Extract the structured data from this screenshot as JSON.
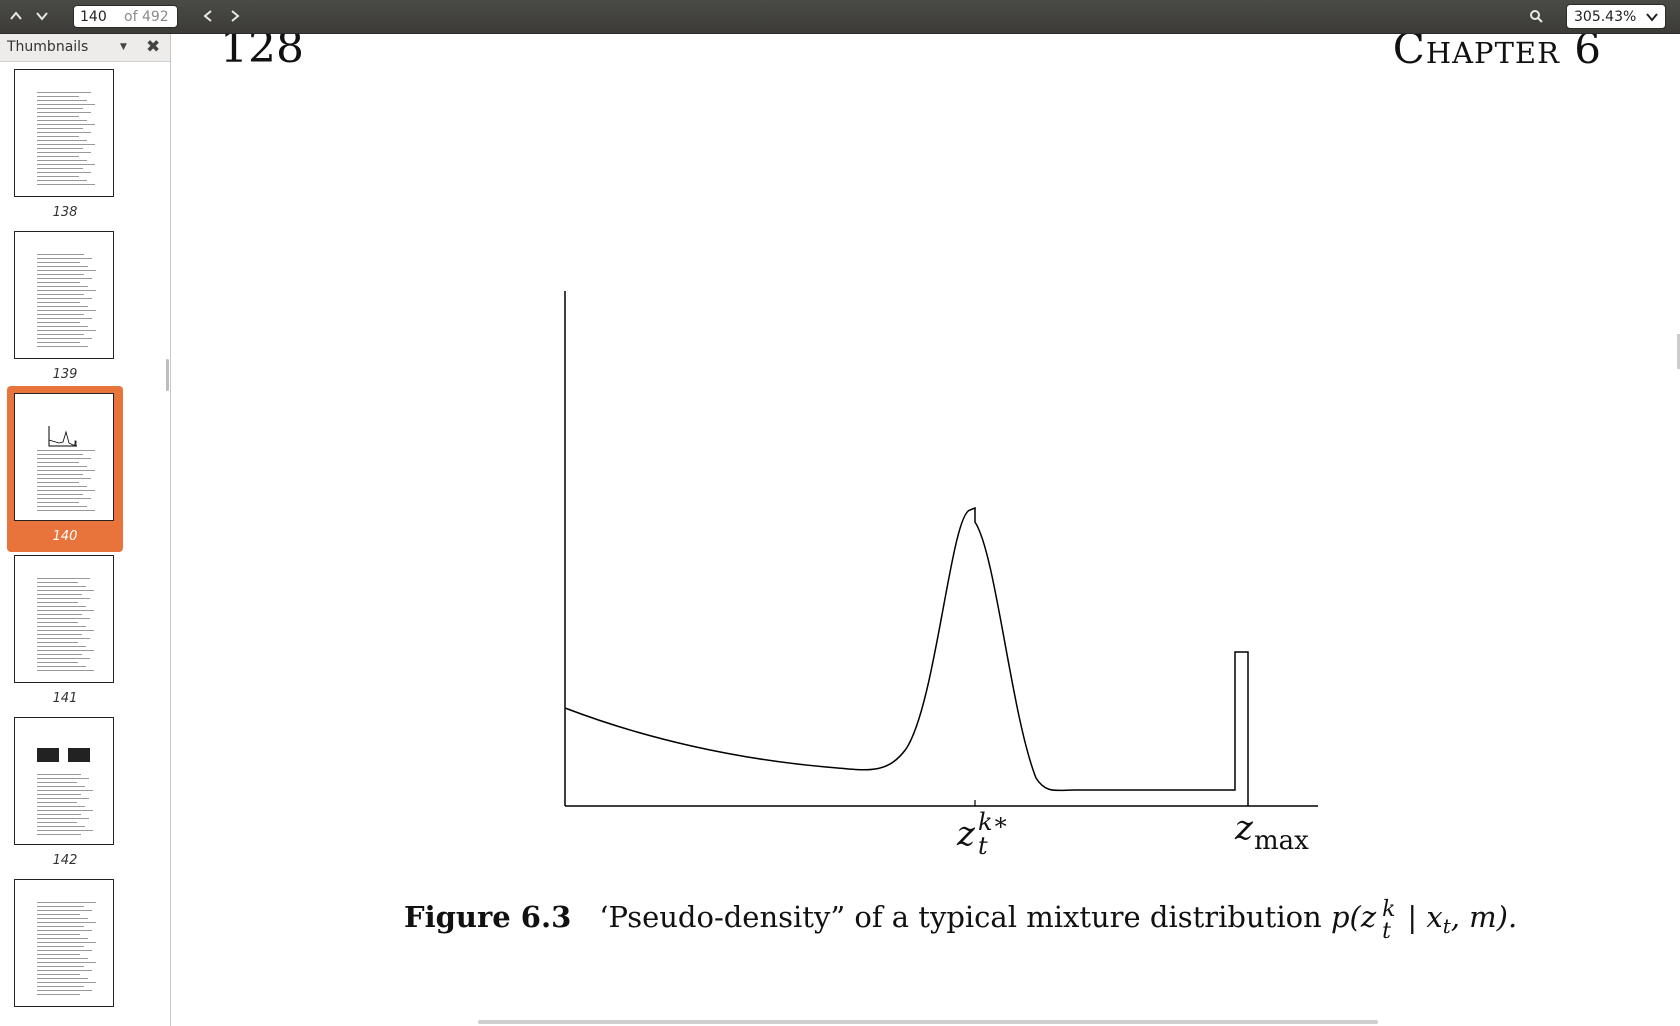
{
  "toolbar": {
    "page_current": "140",
    "page_total": "of 492",
    "zoom_value": "305.43%"
  },
  "sidebar": {
    "title": "Thumbnails",
    "thumbnails": [
      {
        "label": "138",
        "selected": false
      },
      {
        "label": "139",
        "selected": false
      },
      {
        "label": "140",
        "selected": true
      },
      {
        "label": "141",
        "selected": false
      },
      {
        "label": "142",
        "selected": false
      },
      {
        "label": "",
        "selected": false
      }
    ]
  },
  "document": {
    "page_number": "128",
    "chapter": "Chapter 6",
    "figure_label": "Figure 6.3",
    "caption_text": "‘Pseudo-density” of a typical mixture distribution ",
    "caption_math": "p(z",
    "caption_sup": "k",
    "caption_sub": "t",
    "caption_rest": " | x",
    "caption_rest_sub": "t",
    "caption_end": ", m).",
    "peak_label_base": "z",
    "peak_label_sup": "k∗",
    "peak_label_sub": "t",
    "max_label_base": "z",
    "max_label_sub": "max"
  },
  "icons": {
    "prev_page": "chevron-up-icon",
    "next_page": "chevron-down-icon",
    "back": "chevron-left-icon",
    "forward": "chevron-right-icon",
    "search": "search-icon"
  }
}
